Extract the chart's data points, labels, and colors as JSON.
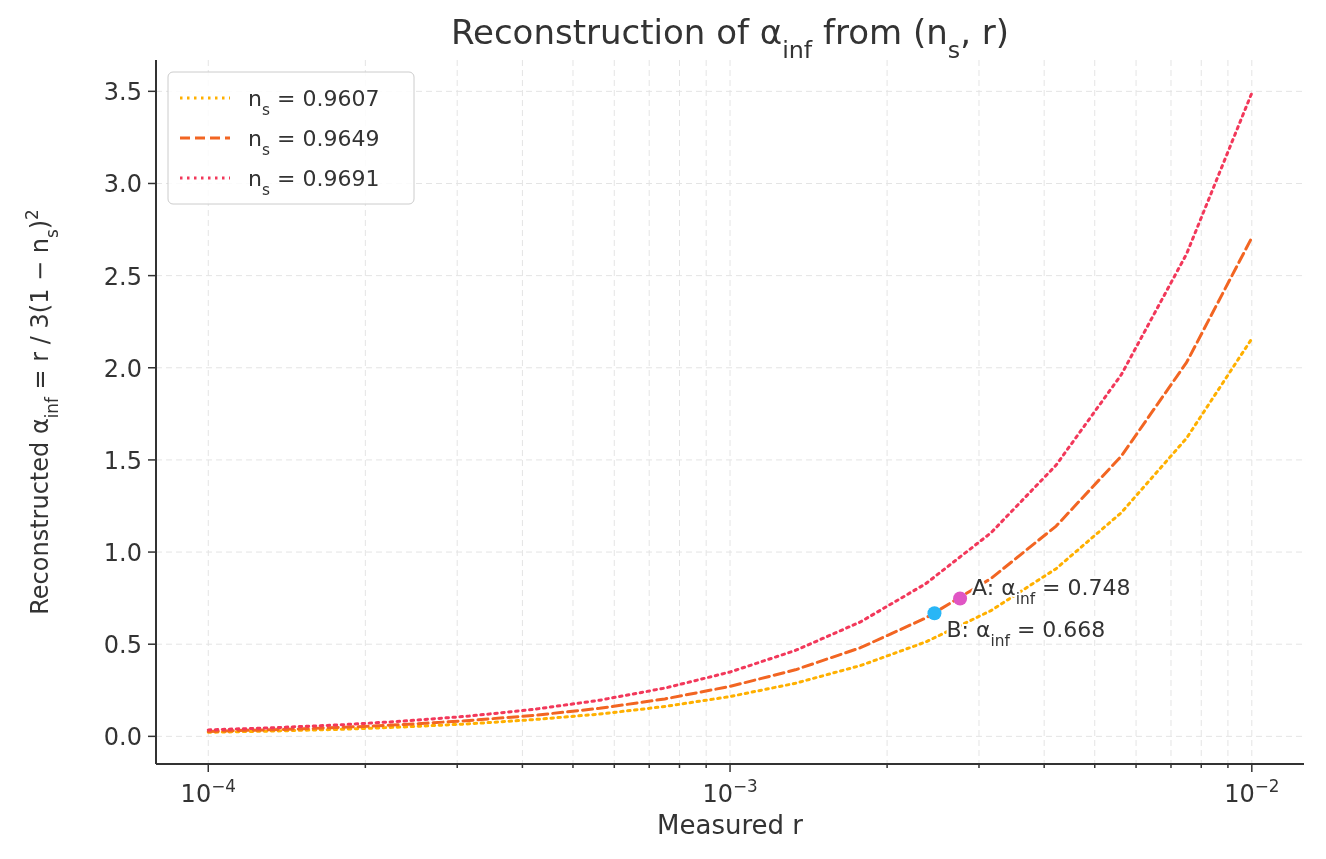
{
  "chart_data": {
    "type": "line",
    "title": "Reconstruction of α$_{inf}$ from (n$_{s}$, r)",
    "xlabel": "Measured r",
    "ylabel": "Reconstructed α$_{inf}$ = r / 3(1 − n$_{s}$)$^{2}$",
    "log": "x",
    "grid": true,
    "legend": "top left",
    "xlim": [
      7.94e-05,
      0.01259
    ],
    "ylim": [
      -0.15,
      3.67
    ],
    "xticks": [
      {
        "value": 0.0001,
        "label": "10$^{−4}$"
      },
      {
        "value": 0.0002,
        "label": null
      },
      {
        "value": 0.0003,
        "label": null
      },
      {
        "value": 0.0004,
        "label": null
      },
      {
        "value": 0.0005,
        "label": null
      },
      {
        "value": 0.0006,
        "label": null
      },
      {
        "value": 0.0007,
        "label": null
      },
      {
        "value": 0.0008,
        "label": null
      },
      {
        "value": 0.0009,
        "label": null
      },
      {
        "value": 0.001,
        "label": "10$^{−3}$"
      },
      {
        "value": 0.002,
        "label": null
      },
      {
        "value": 0.003,
        "label": null
      },
      {
        "value": 0.004,
        "label": null
      },
      {
        "value": 0.005,
        "label": null
      },
      {
        "value": 0.006,
        "label": null
      },
      {
        "value": 0.007,
        "label": null
      },
      {
        "value": 0.008,
        "label": null
      },
      {
        "value": 0.009,
        "label": null
      },
      {
        "value": 0.01,
        "label": "10$^{−2}$"
      }
    ],
    "yticks": [
      {
        "value": 0,
        "label": "0.0"
      },
      {
        "value": 0.5,
        "label": "0.5"
      },
      {
        "value": 1,
        "label": "1.0"
      },
      {
        "value": 1.5,
        "label": "1.5"
      },
      {
        "value": 2,
        "label": "2.0"
      },
      {
        "value": 2.5,
        "label": "2.5"
      },
      {
        "value": 3,
        "label": "3.0"
      },
      {
        "value": 3.5,
        "label": "3.5"
      }
    ],
    "x": [
      0.0001,
      0.0001334,
      0.0001778,
      0.0002371,
      0.0003162,
      0.0004217,
      0.0005623,
      0.0007499,
      0.001,
      0.001334,
      0.001778,
      0.002371,
      0.003162,
      0.004217,
      0.005623,
      0.007499,
      0.01
    ],
    "series": [
      {
        "name": "n$_{s}$ = 0.9607",
        "color": "#ffb000",
        "line_style": "dotted",
        "values": [
          0.022,
          0.029,
          0.038,
          0.051,
          0.068,
          0.091,
          0.121,
          0.162,
          0.216,
          0.288,
          0.384,
          0.512,
          0.682,
          0.91,
          1.214,
          1.618,
          2.158
        ]
      },
      {
        "name": "n$_{s}$ = 0.9649",
        "color": "#f26522",
        "line_style": "dashed",
        "values": [
          0.027,
          0.036,
          0.048,
          0.064,
          0.086,
          0.114,
          0.152,
          0.203,
          0.271,
          0.361,
          0.481,
          0.642,
          0.856,
          1.141,
          1.521,
          2.029,
          2.706
        ]
      },
      {
        "name": "n$_{s}$ = 0.9691",
        "color": "#f2385a",
        "line_style": "dotted",
        "values": [
          0.035,
          0.047,
          0.062,
          0.083,
          0.11,
          0.147,
          0.196,
          0.262,
          0.349,
          0.466,
          0.621,
          0.828,
          1.104,
          1.472,
          1.963,
          2.618,
          3.491
        ]
      },
      {
        "type": "scatter",
        "color": "#e055c4",
        "x": [
          0.00276
        ],
        "values": [
          0.748
        ]
      },
      {
        "type": "scatter",
        "color": "#29b6f6",
        "x": [
          0.002465
        ],
        "values": [
          0.668
        ]
      }
    ],
    "annotations": [
      {
        "text": "A: α$_{inf}$ = 0.748",
        "x": 0.00276,
        "y": 0.748
      },
      {
        "text": "B: α$_{inf}$ = 0.668",
        "x": 0.002465,
        "y": 0.668
      }
    ]
  }
}
